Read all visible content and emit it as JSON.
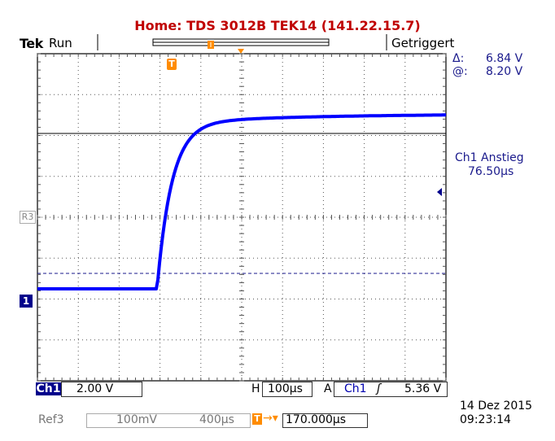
{
  "header": {
    "title": "Home:  TDS 3012B  TEK14  (141.22.15.7)",
    "brand": "Tek",
    "run_state": "Run",
    "trigger_state": "Getriggert"
  },
  "cursor_readout": {
    "delta_label": "Δ:",
    "delta_value": "6.84 V",
    "at_label": "@:",
    "at_value": "8.20 V"
  },
  "measurement": {
    "name": "Ch1 Anstieg",
    "value": "76.50µs"
  },
  "markers": {
    "trigger_position": "T",
    "ch1_ground": "1",
    "ref3": "R3"
  },
  "status_bar": {
    "ch1_label": "Ch1",
    "ch1_scale": "2.00 V",
    "h_label": "H",
    "h_scale": "100µs",
    "a_label": "A",
    "trig_source": "Ch1",
    "trig_slope": "ʃ",
    "trig_level": "5.36 V",
    "ref3_label": "Ref3",
    "ref3_vscale": "100mV",
    "ref3_hscale": "400µs",
    "delay_icon": "T→▾",
    "delay_value": "170.000µs",
    "date": "14 Dez  2015",
    "time": "09:23:14"
  },
  "colors": {
    "header_red": "#c00000",
    "trace_blue": "#0000ff",
    "trigger_orange": "#ff8c00",
    "readout_blue": "#1a1a8c"
  }
}
